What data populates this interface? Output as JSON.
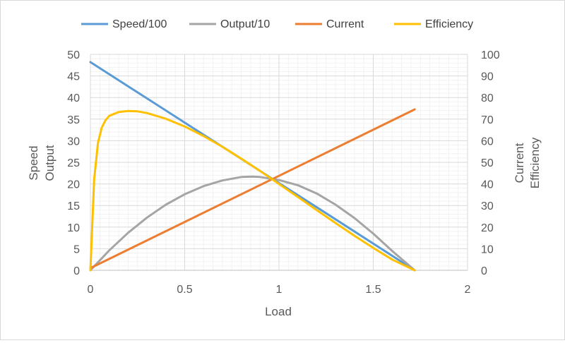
{
  "chart_data": {
    "type": "line",
    "title": "",
    "xlabel": "Load",
    "ylabel_left": [
      "Speed",
      "Output"
    ],
    "ylabel_right": [
      "Current",
      "Efficiency"
    ],
    "xlim": [
      0,
      2
    ],
    "ylim_left": [
      0,
      50
    ],
    "ylim_right": [
      0,
      100
    ],
    "x_ticks": [
      "0",
      "0.5",
      "1",
      "1.5",
      "2"
    ],
    "y_ticks_left": [
      "0",
      "5",
      "10",
      "15",
      "20",
      "25",
      "30",
      "35",
      "40",
      "45",
      "50"
    ],
    "y_ticks_right": [
      "0",
      "10",
      "20",
      "30",
      "40",
      "50",
      "60",
      "70",
      "80",
      "90",
      "100"
    ],
    "grid": true,
    "legend_position": "top",
    "series": [
      {
        "name": "Speed/100",
        "axis": "left",
        "color": "#5b9bd5",
        "x": [
          0,
          0.25,
          0.5,
          0.75,
          1.0,
          1.25,
          1.5,
          1.72
        ],
        "y": [
          48.2,
          41.2,
          34.2,
          27.2,
          20.2,
          13.2,
          6.2,
          0
        ]
      },
      {
        "name": "Output/10",
        "axis": "left",
        "color": "#a5a5a5",
        "x": [
          0,
          0.1,
          0.2,
          0.3,
          0.4,
          0.5,
          0.6,
          0.7,
          0.8,
          0.86,
          0.9,
          1.0,
          1.1,
          1.2,
          1.3,
          1.4,
          1.5,
          1.6,
          1.72
        ],
        "y": [
          0,
          4.6,
          8.7,
          12.2,
          15.2,
          17.6,
          19.5,
          20.8,
          21.6,
          21.7,
          21.6,
          20.9,
          19.7,
          17.8,
          15.2,
          12.1,
          8.5,
          4.5,
          0
        ]
      },
      {
        "name": "Current",
        "axis": "right",
        "color": "#ed7d31",
        "x": [
          0,
          1.72
        ],
        "y": [
          1,
          74.5
        ]
      },
      {
        "name": "Efficiency",
        "axis": "right",
        "color": "#ffc000",
        "x": [
          0,
          0.02,
          0.04,
          0.06,
          0.08,
          0.1,
          0.15,
          0.2,
          0.25,
          0.3,
          0.4,
          0.5,
          0.6,
          0.7,
          0.8,
          0.9,
          1.0,
          1.1,
          1.2,
          1.3,
          1.4,
          1.5,
          1.6,
          1.72
        ],
        "y": [
          0,
          42,
          59,
          66,
          69.5,
          71.5,
          73.3,
          73.8,
          73.6,
          72.8,
          70.2,
          66.6,
          62.2,
          57.2,
          51.7,
          46,
          40,
          34,
          27.9,
          21.9,
          16,
          10.4,
          5,
          0
        ]
      }
    ]
  }
}
